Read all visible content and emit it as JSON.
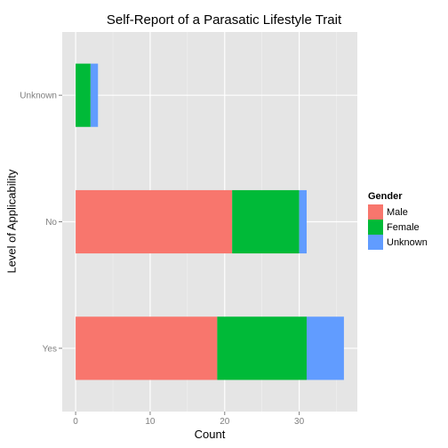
{
  "chart_data": {
    "type": "bar",
    "orientation": "horizontal",
    "stacked": true,
    "title": "Self-Report of a Parasatic Lifestyle Trait",
    "xlabel": "Count",
    "ylabel": "Level of Applicability",
    "categories": [
      "Unknown",
      "No",
      "Yes"
    ],
    "series": [
      {
        "name": "Male",
        "color": "#F8766D",
        "values": [
          0,
          21,
          19
        ]
      },
      {
        "name": "Female",
        "color": "#00BA38",
        "values": [
          2,
          9,
          12
        ]
      },
      {
        "name": "Unknown",
        "color": "#619CFF",
        "values": [
          1,
          1,
          5
        ]
      }
    ],
    "xlim": [
      -1.8,
      37.8
    ],
    "xticks": [
      0,
      10,
      20,
      30
    ],
    "grid": true,
    "legend": {
      "title": "Gender",
      "position": "right"
    }
  }
}
